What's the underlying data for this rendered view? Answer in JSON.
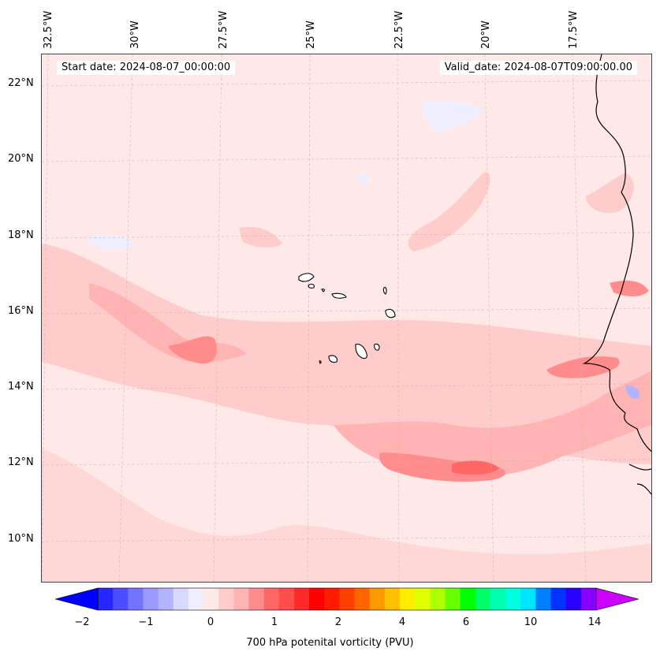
{
  "header": {
    "start_date": "Start date: 2024-08-07_00:00:00",
    "valid_date": "Valid_date: 2024-08-07T09:00:00.00"
  },
  "map": {
    "longitude_labels": [
      "32.5°W",
      "30°W",
      "27.5°W",
      "25°W",
      "22.5°W",
      "20°W",
      "17.5°W"
    ],
    "latitude_labels": [
      "22°N",
      "20°N",
      "18°N",
      "16°N",
      "14°N",
      "12°N",
      "10°N"
    ],
    "land_outline_color": "#000000",
    "gridline_color": "#bbbbbb"
  },
  "colorbar": {
    "label": "700 hPa potenital vorticity (PVU)",
    "tick_labels": [
      "−2",
      "−1",
      "0",
      "1",
      "2",
      "4",
      "6",
      "10",
      "14"
    ],
    "colors": [
      "#0000ff",
      "#2626ff",
      "#4c4cff",
      "#7373ff",
      "#9999ff",
      "#b3b3ff",
      "#d9d9ff",
      "#eeeeff",
      "#ffe8e8",
      "#ffcccc",
      "#ffb3b3",
      "#ff8c8c",
      "#ff6666",
      "#ff4d4d",
      "#ff2b2b",
      "#ff0000",
      "#ff1a00",
      "#ff4000",
      "#ff6600",
      "#ff9900",
      "#ffc000",
      "#ffee00",
      "#e0ff00",
      "#b0ff00",
      "#66ff00",
      "#00ff00",
      "#00ff66",
      "#00ffb0",
      "#00ffe0",
      "#00e5ff",
      "#0080ff",
      "#0033ff",
      "#2a00ff",
      "#8800ff",
      "#cc00ff"
    ]
  }
}
